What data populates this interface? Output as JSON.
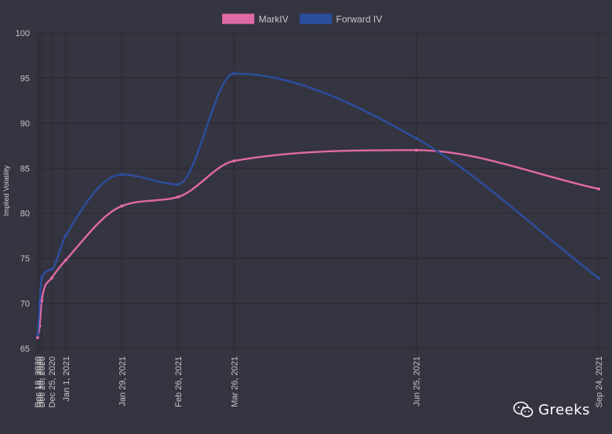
{
  "chart_data": {
    "type": "line",
    "ylabel": "Implied Volatility",
    "ylim": [
      65,
      100
    ],
    "yticks": [
      65,
      70,
      75,
      80,
      85,
      90,
      95,
      100
    ],
    "x_dates": [
      "Dec 18, 2020",
      "Dec 19, 2020",
      "Dec 20, 2020",
      "Dec 25, 2020",
      "Jan 1, 2021",
      "Jan 29, 2021",
      "Feb 26, 2021",
      "Mar 26, 2021",
      "Jun 25, 2021",
      "Sep 24, 2021"
    ],
    "tick_labels": [
      "Dec 18, 2020",
      "Dec 19, 2020",
      "Dec 20, 2020",
      "Dec 25, 2020",
      "Jan 1, 2021",
      "Jan 29, 2021",
      "Feb 26, 2021",
      "Mar 26, 2021",
      "Jun 25, 2021",
      "Sep 24, 2021"
    ],
    "grid": true,
    "legend_position": "top",
    "series": [
      {
        "name": "MarkIV",
        "color": "#e06aa4",
        "values": [
          66.2,
          67.5,
          70.3,
          72.8,
          74.8,
          80.8,
          81.8,
          85.8,
          87.0,
          82.7
        ]
      },
      {
        "name": "Forward IV",
        "color": "#2b4f9e",
        "values": [
          66.5,
          70.0,
          72.8,
          73.8,
          77.5,
          84.3,
          83.2,
          95.5,
          88.3,
          72.8
        ]
      }
    ]
  },
  "colors": {
    "background": "#353441",
    "grid": "#2a2a33",
    "tick_text": "#c6c6c6"
  },
  "watermark": {
    "icon": "wechat-icon",
    "text": "Greeks"
  }
}
